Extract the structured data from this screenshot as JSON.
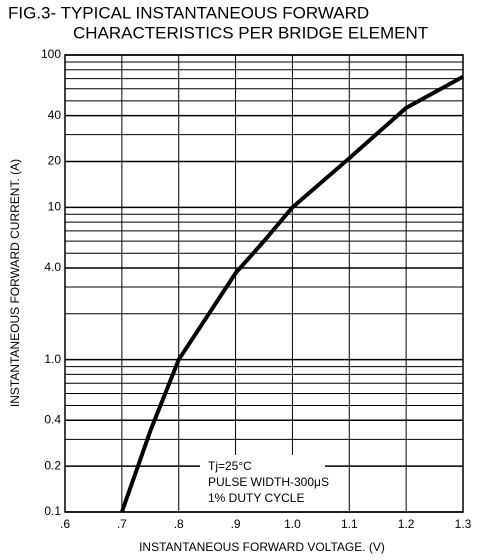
{
  "chart_data": {
    "type": "line",
    "title": [
      "FIG.3- TYPICAL INSTANTANEOUS FORWARD",
      "CHARACTERISTICS PER BRIDGE ELEMENT"
    ],
    "x_label": "INSTANTANEOUS FORWARD VOLTAGE. (V)",
    "y_label": "INSTANTANEOUS FORWARD CURRENT. (A)",
    "annotation": [
      "Tj=25°C",
      "PULSE WIDTH-300μS",
      "1% DUTY CYCLE"
    ],
    "x": [
      0.7,
      0.75,
      0.8,
      0.9,
      0.95,
      1.0,
      1.1,
      1.2,
      1.3
    ],
    "series": [
      {
        "name": "forward current",
        "color": "#000000",
        "values": [
          0.1,
          0.34,
          1.0,
          3.7,
          6.0,
          10,
          21,
          45,
          72
        ]
      }
    ],
    "xlim": [
      0.6,
      1.3
    ],
    "xticks": [
      {
        "value": 0.6,
        "label": ".6"
      },
      {
        "value": 0.7,
        "label": ".7"
      },
      {
        "value": 0.8,
        "label": ".8"
      },
      {
        "value": 0.9,
        "label": ".9"
      },
      {
        "value": 1.0,
        "label": "1.0"
      },
      {
        "value": 1.1,
        "label": "1.1"
      },
      {
        "value": 1.2,
        "label": "1.2"
      },
      {
        "value": 1.3,
        "label": "1.3"
      }
    ],
    "ylim": [
      0.1,
      100
    ],
    "y_log": true,
    "yticks": [
      0.1,
      0.2,
      0.4,
      {
        "value": 1,
        "label": "1.0"
      },
      {
        "value": 4,
        "label": "4.0"
      },
      10,
      20,
      40,
      100
    ],
    "yminorticks": [
      0.3,
      0.5,
      0.6,
      0.7,
      0.8,
      0.9,
      2,
      3,
      5,
      6,
      7,
      8,
      9,
      30,
      50,
      60,
      70,
      80,
      90
    ],
    "grid": true
  }
}
